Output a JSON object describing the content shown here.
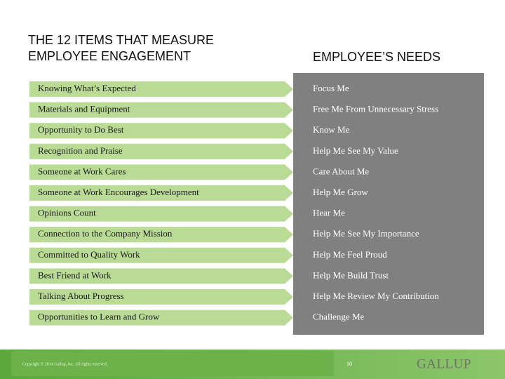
{
  "header": {
    "left_title": [
      "THE 12 ITEMS THAT MEASURE",
      "EMPLOYEE ENGAGEMENT"
    ],
    "right_title": "EMPLOYEE’S NEEDS"
  },
  "rows": [
    {
      "item": "Knowing What’s Expected",
      "need": "Focus Me"
    },
    {
      "item": "Materials and Equipment",
      "need": "Free Me From Unnecessary Stress"
    },
    {
      "item": "Opportunity to Do Best",
      "need": "Know Me"
    },
    {
      "item": "Recognition and Praise",
      "need": "Help Me See My Value"
    },
    {
      "item": "Someone at Work Cares",
      "need": "Care About Me"
    },
    {
      "item": "Someone at Work Encourages Development",
      "need": "Help Me Grow"
    },
    {
      "item": "Opinions Count",
      "need": "Hear Me"
    },
    {
      "item": "Connection to the Company Mission",
      "need": "Help Me See My Importance"
    },
    {
      "item": "Committed to Quality Work",
      "need": "Help Me Feel Proud"
    },
    {
      "item": "Best Friend at Work",
      "need": "Help Me Build Trust"
    },
    {
      "item": "Talking About Progress",
      "need": "Help Me Review My Contribution"
    },
    {
      "item": "Opportunities to Learn and Grow",
      "need": "Challenge Me"
    }
  ],
  "footer": {
    "copyright": "Copyright © 2014 Gallup, Inc. All rights reserved.",
    "page": "10",
    "logo": "GALLUP"
  }
}
